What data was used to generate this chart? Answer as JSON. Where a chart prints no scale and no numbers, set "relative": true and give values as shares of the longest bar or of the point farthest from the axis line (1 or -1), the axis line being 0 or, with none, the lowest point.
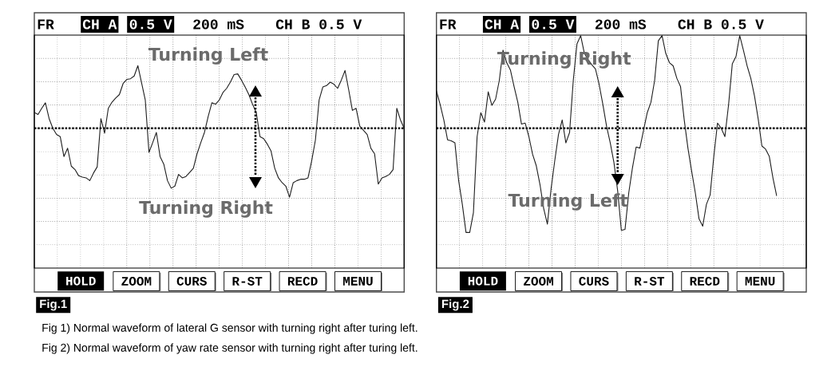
{
  "chart_data": [
    {
      "type": "line",
      "title": "Fig.1",
      "relative": true,
      "grid": true,
      "color": "#1e1e1e",
      "categories": [
        null,
        null,
        null,
        null,
        null,
        null,
        null,
        null,
        null,
        null,
        null,
        null,
        null,
        null,
        null,
        null,
        null,
        null,
        null,
        null,
        null,
        null,
        null,
        null,
        null,
        null,
        null,
        null,
        null,
        null,
        null,
        null,
        null,
        null,
        null,
        null,
        null,
        null,
        null,
        null,
        null,
        null,
        null,
        null,
        null,
        null,
        null,
        null,
        null,
        null,
        null,
        null,
        null,
        null,
        null,
        null,
        null,
        null,
        null,
        null,
        null,
        null,
        null,
        null,
        null,
        null,
        null,
        null,
        null,
        null,
        null,
        null,
        null,
        null,
        null,
        null,
        null,
        null,
        null,
        null,
        null,
        null,
        null,
        null,
        null,
        null,
        null,
        null,
        null,
        null,
        null,
        null,
        null,
        null,
        null,
        null,
        null,
        null,
        null,
        null,
        null
      ],
      "values": [
        0.23,
        0.2,
        0.29,
        0.37,
        0.14,
        0.0,
        -0.09,
        -0.12,
        -0.41,
        -0.29,
        -0.55,
        -0.6,
        -0.69,
        -0.71,
        -0.72,
        -0.76,
        -0.65,
        -0.56,
        0.14,
        -0.07,
        0.29,
        0.38,
        0.44,
        0.49,
        0.65,
        0.71,
        0.72,
        0.76,
        0.91,
        0.66,
        0.41,
        -0.35,
        -0.21,
        -0.06,
        -0.41,
        -0.52,
        -0.76,
        -0.87,
        -0.84,
        -0.67,
        -0.72,
        -0.7,
        -0.64,
        -0.58,
        -0.37,
        -0.21,
        -0.06,
        0.17,
        0.37,
        0.35,
        0.41,
        0.52,
        0.58,
        0.67,
        0.78,
        0.79,
        0.7,
        0.6,
        0.49,
        0.35,
        0.23,
        -0.12,
        -0.15,
        -0.23,
        -0.33,
        -0.58,
        -0.72,
        -0.79,
        -0.84,
        -1.0,
        -0.79,
        -0.76,
        -0.74,
        -0.74,
        -0.72,
        -0.47,
        -0.17,
        0.41,
        0.6,
        0.62,
        0.67,
        0.64,
        0.58,
        0.7,
        0.84,
        0.56,
        0.26,
        0.29,
        0.03,
        -0.03,
        -0.09,
        -0.29,
        -0.37,
        -0.81,
        -0.72,
        -0.7,
        -0.67,
        -0.6,
        0.29,
        0.12,
        0.0
      ],
      "ref_lines": [
        {
          "axis": "y",
          "value": 0,
          "line_style": "dotted",
          "color": "#000000"
        }
      ],
      "annotations": [
        "FR",
        "CH A",
        "0.5 V",
        "200 mS",
        "CH B 0.5 V",
        "Turning Left",
        "Turning Right",
        "HOLD",
        "ZOOM",
        "CURS",
        "R-ST",
        "RECD",
        "MENU",
        "Fig 1) Normal waveform of lateral G sensor with turning right after turing left."
      ]
    },
    {
      "type": "line",
      "title": "Fig.2",
      "relative": true,
      "grid": true,
      "color": "#1e1e1e",
      "categories": [
        null,
        null,
        null,
        null,
        null,
        null,
        null,
        null,
        null,
        null,
        null,
        null,
        null,
        null,
        null,
        null,
        null,
        null,
        null,
        null,
        null,
        null,
        null,
        null,
        null,
        null,
        null,
        null,
        null,
        null,
        null,
        null,
        null,
        null,
        null,
        null,
        null,
        null,
        null,
        null,
        null,
        null,
        null,
        null,
        null,
        null,
        null,
        null,
        null,
        null,
        null,
        null,
        null,
        null,
        null,
        null,
        null,
        null,
        null,
        null,
        null,
        null,
        null,
        null,
        null,
        null,
        null,
        null,
        null,
        null,
        null,
        null,
        null,
        null,
        null,
        null,
        null,
        null,
        null,
        null,
        null,
        null,
        null,
        null,
        null,
        null,
        null,
        null,
        null,
        null,
        null,
        null,
        null,
        null,
        null,
        null,
        null,
        null,
        null,
        null,
        null
      ],
      "values": [
        0.36,
        0.23,
        0.08,
        -0.11,
        -0.12,
        -0.14,
        -0.5,
        -0.73,
        -1.0,
        -1.0,
        -0.81,
        -0.08,
        0.15,
        0.06,
        0.35,
        0.22,
        0.28,
        0.46,
        0.75,
        0.63,
        0.56,
        0.4,
        0.25,
        0.04,
        0.05,
        -0.08,
        -0.25,
        -0.36,
        -0.54,
        -0.77,
        -0.92,
        -0.58,
        -0.31,
        -0.06,
        0.08,
        -0.14,
        -0.04,
        0.46,
        0.81,
        0.89,
        0.72,
        0.66,
        0.61,
        0.57,
        0.42,
        0.23,
        0.02,
        -0.14,
        -0.33,
        -0.6,
        -0.98,
        -0.97,
        -0.62,
        -0.38,
        -0.18,
        -0.19,
        -0.02,
        0.15,
        0.25,
        0.46,
        0.84,
        0.89,
        0.72,
        0.63,
        0.6,
        0.48,
        0.4,
        0.08,
        -0.19,
        -0.41,
        -0.62,
        -0.87,
        -0.94,
        -0.73,
        -0.64,
        -0.27,
        0.05,
        0.0,
        -0.08,
        0.23,
        0.62,
        0.69,
        0.89,
        0.75,
        0.6,
        0.48,
        0.31,
        0.09,
        -0.17,
        -0.2,
        -0.27,
        -0.48,
        -0.65,
        null,
        null,
        null,
        null,
        null,
        null,
        null,
        null
      ],
      "ref_lines": [
        {
          "axis": "y",
          "value": 0,
          "line_style": "dotted",
          "color": "#000000"
        }
      ],
      "annotations": [
        "FR",
        "CH A",
        "0.5 V",
        "200 mS",
        "CH B 0.5 V",
        "Turning Right",
        "Turning Left",
        "HOLD",
        "ZOOM",
        "CURS",
        "R-ST",
        "RECD",
        "MENU",
        "Fig 2) Normal waveform of yaw rate sensor with turning right after turing left."
      ]
    }
  ]
}
